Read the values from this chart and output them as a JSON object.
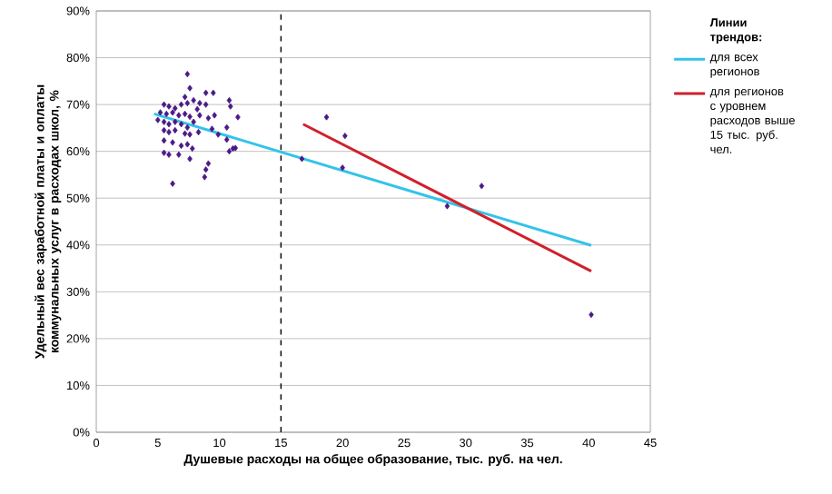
{
  "chart_data": {
    "type": "scatter",
    "xlabel": "Душевые расходы на общее образование, тыс. руб. на чел.",
    "ylabel": "Удельный вес заработной платы и оплаты коммунальных услуг в расходах школ, %",
    "legend_title": "Линии трендов:",
    "xlim": [
      0,
      45
    ],
    "xticks": [
      0,
      5,
      10,
      15,
      20,
      25,
      30,
      35,
      40,
      45
    ],
    "ylim": [
      0,
      90
    ],
    "yticks": [
      {
        "value": 0,
        "label": "0%"
      },
      {
        "value": 10,
        "label": "10%"
      },
      {
        "value": 20,
        "label": "20%"
      },
      {
        "value": 30,
        "label": "30%"
      },
      {
        "value": 40,
        "label": "40%"
      },
      {
        "value": 50,
        "label": "50%"
      },
      {
        "value": 60,
        "label": "60%"
      },
      {
        "value": 70,
        "label": "70%"
      },
      {
        "value": 80,
        "label": "80%"
      },
      {
        "value": 90,
        "label": "90%"
      }
    ],
    "grid": "y",
    "legend": "right",
    "ref_lines": [
      {
        "axis": "x",
        "value": 15,
        "color": "#000000",
        "line_style": "dashed"
      }
    ],
    "series": [
      {
        "color": "#4b1a88",
        "marker": "diamond",
        "x": [
          7.4,
          7.6,
          8.9,
          9.5,
          10.8,
          10.9,
          11.5,
          5.5,
          5.9,
          6.4,
          6.9,
          7.4,
          7.9,
          8.2,
          8.4,
          5.2,
          5.7,
          6.2,
          6.7,
          7.2,
          7.6,
          5.0,
          5.5,
          5.9,
          6.4,
          6.9,
          7.4,
          7.9,
          8.9,
          9.1,
          9.4,
          5.5,
          5.9,
          6.4,
          7.2,
          7.6,
          8.3,
          10.6,
          5.5,
          6.2,
          6.9,
          7.4,
          7.8,
          10.6,
          11.1,
          10.8,
          5.5,
          5.9,
          6.7,
          7.6,
          9.1,
          8.9,
          8.8,
          6.2,
          9.6,
          9.9,
          8.4,
          7.2,
          11.3,
          16.7,
          18.7,
          20.2,
          20.0,
          28.5,
          31.3,
          40.2
        ],
        "values": [
          76.5,
          73.5,
          72.5,
          72.5,
          70.9,
          69.6,
          67.3,
          70.0,
          69.6,
          69.2,
          70.0,
          70.3,
          70.9,
          69.0,
          67.7,
          68.3,
          68.0,
          68.3,
          67.7,
          68.0,
          67.4,
          66.7,
          66.3,
          65.8,
          66.3,
          65.8,
          65.1,
          66.3,
          70.0,
          67.1,
          64.8,
          64.5,
          64.1,
          64.5,
          63.8,
          63.6,
          64.1,
          65.1,
          62.3,
          61.9,
          61.2,
          61.5,
          60.6,
          62.5,
          60.6,
          60.0,
          59.7,
          59.3,
          59.3,
          58.4,
          57.4,
          56.1,
          54.5,
          53.1,
          67.7,
          63.6,
          70.3,
          71.6,
          60.7,
          58.4,
          67.3,
          63.3,
          56.5,
          48.3,
          52.6,
          25.1
        ]
      },
      {
        "type": "line",
        "name": "для всех регионов",
        "color": "#33c3e8",
        "x": [
          4.7,
          40.2
        ],
        "values": [
          68.0,
          39.9
        ]
      },
      {
        "type": "line",
        "name": "для регионов с уровнем расходов выше 15 тыс. руб. чел.",
        "color": "#d0202a",
        "x": [
          16.8,
          40.2
        ],
        "values": [
          65.8,
          34.4
        ]
      }
    ]
  }
}
